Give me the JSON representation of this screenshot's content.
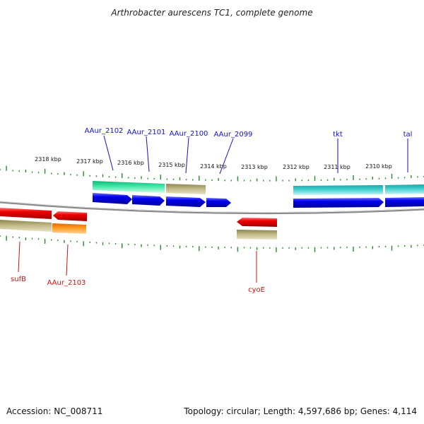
{
  "title": "Arthrobacter aurescens TC1, complete genome",
  "footer": {
    "accession": "Accession: NC_008711",
    "summary": "Topology: circular; Length: 4,597,686 bp; Genes: 4,114"
  },
  "ruler": [
    "2318 kbp",
    "2317 kbp",
    "2316 kbp",
    "2315 kbp",
    "2314 kbp",
    "2313 kbp",
    "2312 kbp",
    "2311 kbp",
    "2310 kbp"
  ],
  "gene_labels": [
    "AAur_2102",
    "AAur_2101",
    "AAur_2100",
    "AAur_2099",
    "tkt",
    "tal",
    "sufB",
    "AAur_2103",
    "cyoE"
  ],
  "colors": {
    "forward_label": "#1010c8",
    "reverse_label": "#cc1010",
    "cds_forward": "#0000ee",
    "cds_reverse": "#ee0000",
    "tick": "#2a8a2a",
    "backbone": "#888888",
    "teal": "#33c4c4",
    "mint": "#33e0a0",
    "khaki": "#b8b07a",
    "orange": "#ff8c10"
  }
}
